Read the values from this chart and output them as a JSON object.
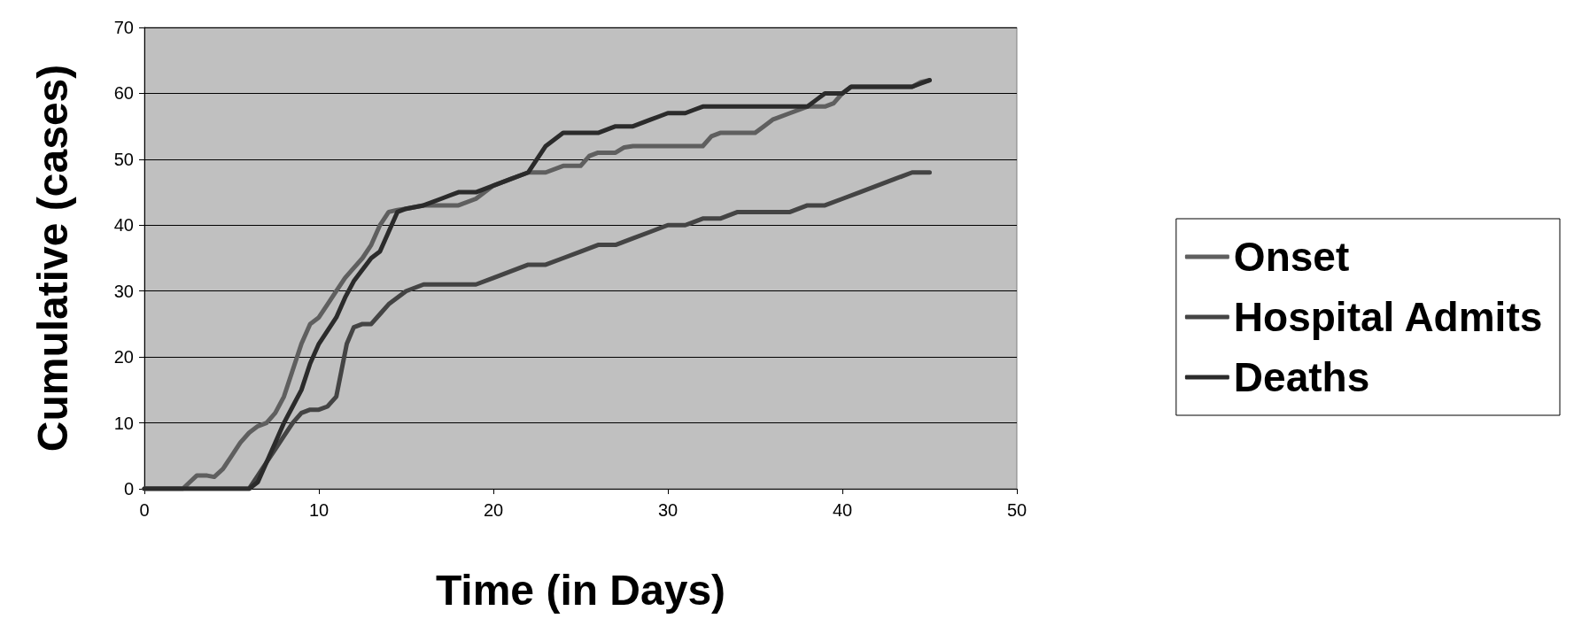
{
  "chart_data": {
    "type": "line",
    "xlabel": "Time (in Days)",
    "ylabel": "Cumulative (cases)",
    "xlim": [
      0,
      50
    ],
    "xticks": [
      0,
      10,
      20,
      30,
      40,
      50
    ],
    "ylim": [
      0,
      70
    ],
    "yticks": [
      0,
      10,
      20,
      30,
      40,
      50,
      60,
      70
    ],
    "grid": "y",
    "legend": "right",
    "marker": "none",
    "line_style": "solid",
    "series": [
      {
        "name": "Onset",
        "color": "#5f5f5f",
        "x": [
          0,
          2.2,
          2.6,
          3,
          3.6,
          4,
          4.5,
          5,
          5.5,
          6,
          6.5,
          7,
          7.5,
          8,
          8.5,
          9,
          9.5,
          10,
          10.5,
          11,
          11.5,
          12,
          12.5,
          13,
          13.5,
          14,
          14.5,
          15,
          16,
          17,
          18,
          19,
          20,
          21,
          22,
          23,
          24,
          25,
          25.5,
          26,
          27,
          27.5,
          28,
          32,
          32.5,
          33,
          35,
          35.5,
          36,
          37,
          38,
          39,
          39.5,
          40,
          40.5,
          44,
          44.5,
          45
        ],
        "values": [
          0,
          0,
          1,
          2,
          2,
          1.8,
          3,
          5,
          7,
          8.5,
          9.5,
          10,
          11.5,
          14,
          18,
          22,
          25,
          26,
          28,
          30,
          32,
          33.5,
          35,
          37,
          40,
          42,
          42.3,
          42.5,
          43,
          43,
          43,
          44,
          46,
          47,
          48,
          48,
          49,
          49,
          50.5,
          51,
          51,
          51.8,
          52,
          52,
          53.5,
          54,
          54,
          55,
          56,
          57,
          58,
          58,
          58.5,
          60,
          61,
          61,
          61.7,
          62
        ]
      },
      {
        "name": "Hospital Admits",
        "color": "#444444",
        "x": [
          0,
          6,
          6.5,
          7,
          7.5,
          8,
          8.5,
          9,
          9.5,
          10,
          10.5,
          11,
          11.3,
          11.6,
          12,
          12.5,
          13,
          13.5,
          14,
          15,
          16,
          19,
          20,
          21,
          21.5,
          22,
          23,
          24,
          25,
          26,
          27,
          28,
          29,
          30,
          31,
          31.5,
          32,
          33,
          34,
          37,
          37.5,
          38,
          39,
          40,
          41,
          42,
          43,
          44,
          45
        ],
        "values": [
          0,
          0,
          2,
          4,
          6,
          8,
          10,
          11.5,
          12,
          12,
          12.5,
          14,
          18,
          22,
          24.5,
          25,
          25,
          26.5,
          28,
          30,
          31,
          31,
          32,
          33,
          33.5,
          34,
          34,
          35,
          36,
          37,
          37,
          38,
          39,
          40,
          40,
          40.5,
          41,
          41,
          42,
          42,
          42.5,
          43,
          43,
          44,
          45,
          46,
          47,
          48,
          48
        ]
      },
      {
        "name": "Deaths",
        "color": "#2b2b2b",
        "x": [
          0,
          6,
          6.5,
          7,
          7.5,
          8,
          8.5,
          9,
          9.5,
          10,
          10.5,
          11,
          11.5,
          12,
          13,
          13.5,
          14,
          14.5,
          15,
          16,
          17,
          18,
          19,
          20,
          21,
          22,
          23,
          23.5,
          24,
          25,
          26,
          26.5,
          27,
          28,
          29,
          29.5,
          30,
          31,
          31.5,
          32,
          38,
          38.5,
          39,
          40,
          40.5,
          41,
          44,
          44.5,
          45
        ],
        "values": [
          0,
          0,
          1,
          4,
          7,
          10,
          12.5,
          15,
          19,
          22,
          24,
          26,
          29,
          31.5,
          35,
          36,
          39,
          42,
          42.5,
          43,
          44,
          45,
          45,
          46,
          47,
          48,
          52,
          53,
          54,
          54,
          54,
          54.5,
          55,
          55,
          56,
          56.5,
          57,
          57,
          57.5,
          58,
          58,
          59,
          60,
          60,
          61,
          61,
          61,
          61.5,
          62
        ]
      }
    ]
  }
}
